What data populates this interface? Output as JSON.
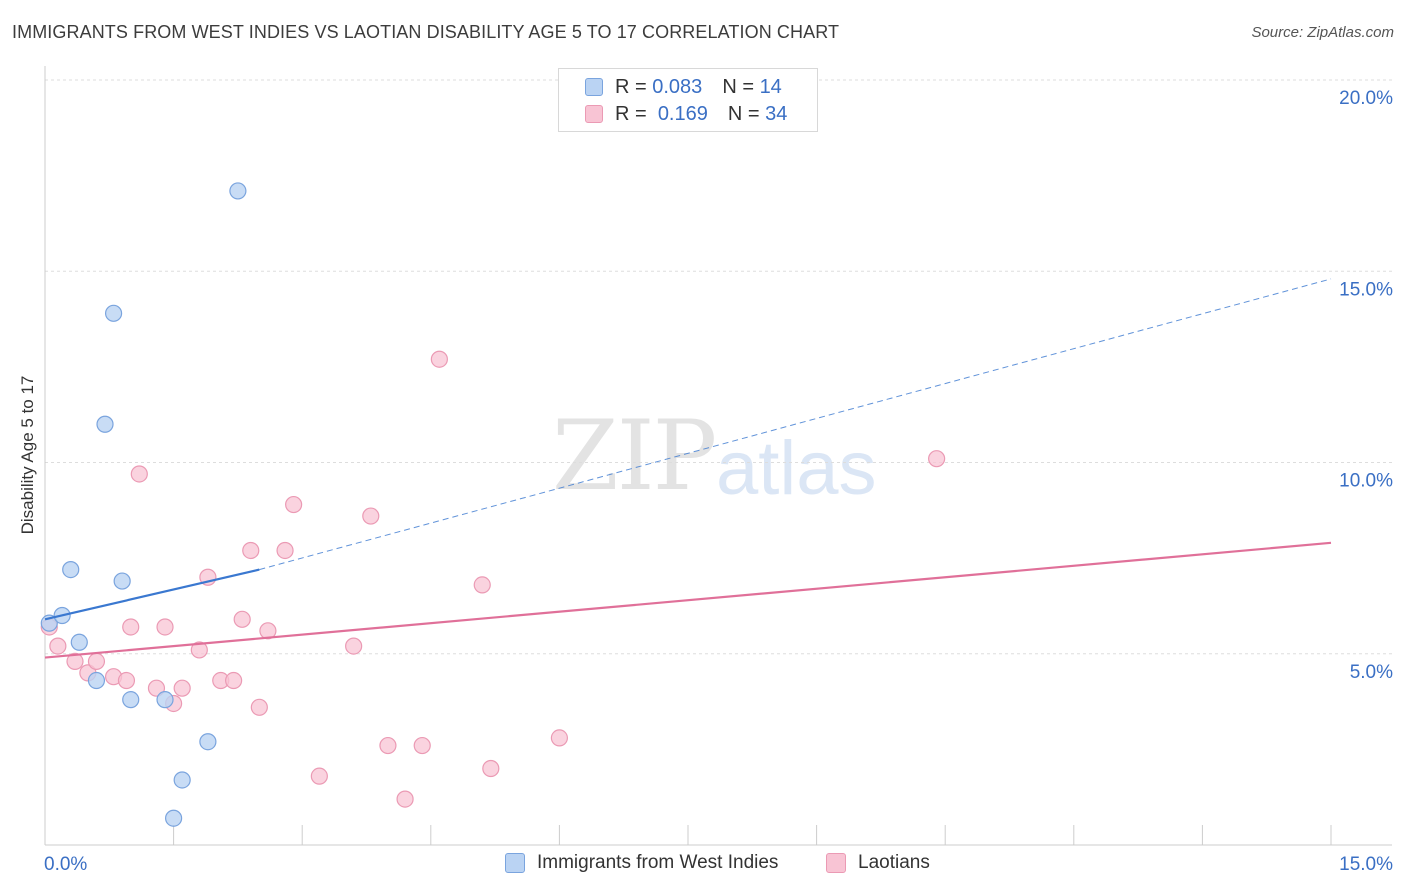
{
  "title": "IMMIGRANTS FROM WEST INDIES VS LAOTIAN DISABILITY AGE 5 TO 17 CORRELATION CHART",
  "source": "Source: ZipAtlas.com",
  "watermark": {
    "zip": "ZIP",
    "atlas": "atlas"
  },
  "legend": {
    "r_label": "R =",
    "n_label": "N =",
    "series": [
      {
        "r": "0.083",
        "n": "14"
      },
      {
        "r": "0.169",
        "n": "34"
      }
    ]
  },
  "colors": {
    "blue_fill": "#bad3f3",
    "blue_stroke": "#7aa4de",
    "blue_line": "#3a78d0",
    "pink_fill": "#f8c4d4",
    "pink_stroke": "#eb9ab4",
    "pink_line": "#e07099",
    "tick_label": "#3a6fc4",
    "grid": "#dddddd"
  },
  "chart_data": {
    "type": "scatter",
    "title": "IMMIGRANTS FROM WEST INDIES VS LAOTIAN DISABILITY AGE 5 TO 17 CORRELATION CHART",
    "xlabel": "",
    "ylabel": "Disability Age 5 to 17",
    "xlim": [
      0,
      15
    ],
    "ylim": [
      0,
      20
    ],
    "x_tick_labels": [
      "0.0%",
      "15.0%"
    ],
    "y_ticks": [
      5,
      10,
      15,
      20
    ],
    "y_tick_labels": [
      "5.0%",
      "10.0%",
      "15.0%",
      "20.0%"
    ],
    "series": [
      {
        "name": "Immigrants from West Indies",
        "r": 0.083,
        "n": 14,
        "points": [
          [
            0.05,
            5.8
          ],
          [
            0.2,
            6.0
          ],
          [
            0.3,
            7.2
          ],
          [
            0.4,
            5.3
          ],
          [
            0.6,
            4.3
          ],
          [
            0.7,
            11.0
          ],
          [
            0.8,
            13.9
          ],
          [
            0.9,
            6.9
          ],
          [
            1.0,
            3.8
          ],
          [
            1.4,
            3.8
          ],
          [
            1.5,
            0.7
          ],
          [
            1.6,
            1.7
          ],
          [
            1.9,
            2.7
          ],
          [
            2.25,
            17.1
          ]
        ],
        "trend": {
          "x0": 0.0,
          "y0": 5.9,
          "x1": 2.5,
          "y1": 7.2,
          "dash_to_x": 15.0,
          "dash_to_y": 14.8
        }
      },
      {
        "name": "Laotians",
        "r": 0.169,
        "n": 34,
        "points": [
          [
            0.05,
            5.7
          ],
          [
            0.15,
            5.2
          ],
          [
            0.35,
            4.8
          ],
          [
            0.5,
            4.5
          ],
          [
            0.6,
            4.8
          ],
          [
            0.8,
            4.4
          ],
          [
            0.95,
            4.3
          ],
          [
            1.0,
            5.7
          ],
          [
            1.1,
            9.7
          ],
          [
            1.3,
            4.1
          ],
          [
            1.4,
            5.7
          ],
          [
            1.5,
            3.7
          ],
          [
            1.6,
            4.1
          ],
          [
            1.8,
            5.1
          ],
          [
            1.9,
            7.0
          ],
          [
            2.05,
            4.3
          ],
          [
            2.2,
            4.3
          ],
          [
            2.3,
            5.9
          ],
          [
            2.4,
            7.7
          ],
          [
            2.5,
            3.6
          ],
          [
            2.6,
            5.6
          ],
          [
            2.8,
            7.7
          ],
          [
            2.9,
            8.9
          ],
          [
            3.2,
            1.8
          ],
          [
            3.6,
            5.2
          ],
          [
            3.8,
            8.6
          ],
          [
            4.0,
            2.6
          ],
          [
            4.2,
            1.2
          ],
          [
            4.4,
            2.6
          ],
          [
            4.6,
            12.7
          ],
          [
            5.1,
            6.8
          ],
          [
            5.2,
            2.0
          ],
          [
            6.0,
            2.8
          ],
          [
            10.4,
            10.1
          ]
        ],
        "trend": {
          "x0": 0.0,
          "y0": 4.9,
          "x1": 15.0,
          "y1": 7.9
        }
      }
    ]
  }
}
